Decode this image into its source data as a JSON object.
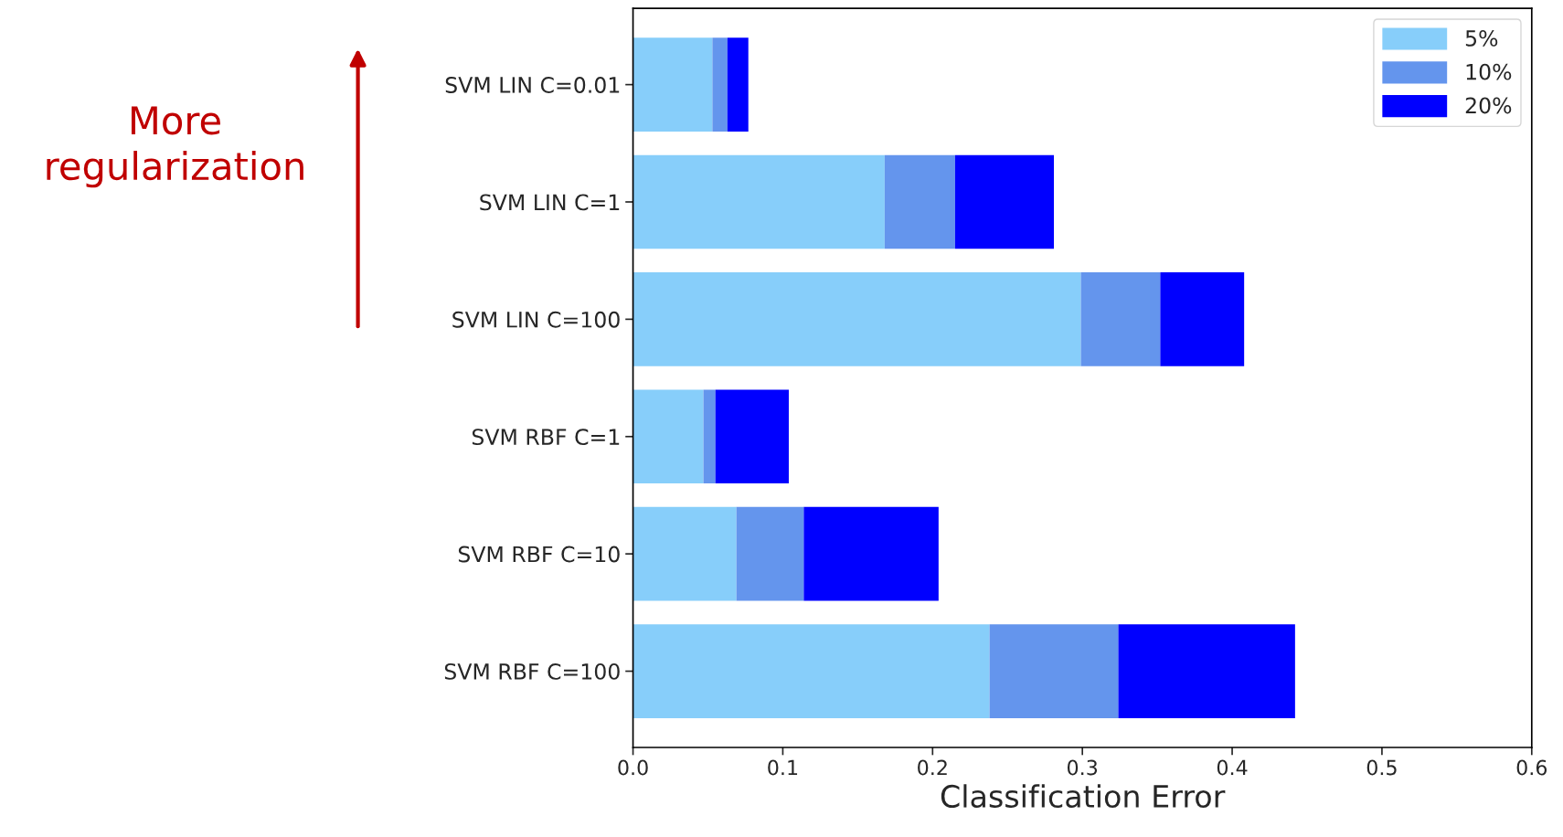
{
  "chart_data": {
    "type": "bar",
    "orientation": "horizontal",
    "stacked": true,
    "xlabel": "Classification Error",
    "categories": [
      "SVM LIN C=0.01",
      "SVM LIN C=1",
      "SVM LIN C=100",
      "SVM RBF C=1",
      "SVM RBF C=10",
      "SVM RBF C=100"
    ],
    "series": [
      {
        "name": "5%",
        "color": "#87cefa",
        "values": [
          0.053,
          0.168,
          0.299,
          0.047,
          0.069,
          0.238
        ]
      },
      {
        "name": "10%",
        "color": "#6495ed",
        "values": [
          0.01,
          0.047,
          0.053,
          0.008,
          0.045,
          0.086
        ]
      },
      {
        "name": "20%",
        "color": "#0000ff",
        "values": [
          0.014,
          0.066,
          0.056,
          0.049,
          0.09,
          0.118
        ]
      }
    ],
    "xlim": [
      0.0,
      0.6
    ],
    "xticks": [
      {
        "value": 0.0,
        "label": "0.0"
      },
      0.1,
      0.2,
      0.3,
      0.4,
      0.5,
      0.6
    ],
    "legend": "top right",
    "grid": false,
    "annotations": [
      "More\nregularization"
    ]
  }
}
